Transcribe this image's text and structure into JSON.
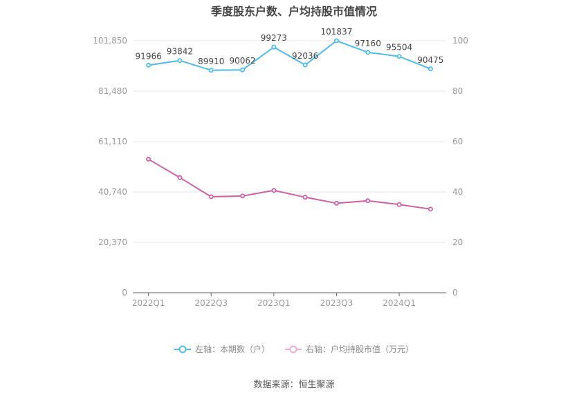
{
  "title": "季度股东户数、户均持股市值情况",
  "legend": {
    "left_label": "左轴：本期数（户）",
    "right_label": "右轴：户均持股市值（万元）"
  },
  "source": "数据来源：恒生聚源",
  "colors": {
    "holders": "#4dbbeb",
    "avg_value": "#d05fa4",
    "legend_right": "#f0a8cf",
    "grid": "#e6e6ef",
    "axis_text": "#999999",
    "label_text": "#444444"
  },
  "chart_data": {
    "type": "line",
    "title": "季度股东户数、户均持股市值情况",
    "categories": [
      "2022Q1",
      "2022Q2",
      "2022Q3",
      "2022Q4",
      "2023Q1",
      "2023Q2",
      "2023Q3",
      "2023Q4",
      "2024Q1",
      "2024Q2"
    ],
    "x_tick_labels": [
      "2022Q1",
      "2022Q3",
      "2023Q1",
      "2023Q3",
      "2024Q1"
    ],
    "series": [
      {
        "name": "左轴：本期数（户）",
        "axis": "left",
        "values": [
          91966,
          93842,
          89910,
          90062,
          99273,
          92036,
          101837,
          97160,
          95504,
          90475
        ],
        "data_labels": true
      },
      {
        "name": "右轴：户均持股市值（万元）",
        "axis": "right",
        "values": [
          53.0,
          45.7,
          38.1,
          38.4,
          40.6,
          37.9,
          35.5,
          36.5,
          35.0,
          33.2
        ],
        "data_labels": false
      }
    ],
    "left_axis": {
      "ticks": [
        "0",
        "20,370",
        "40,740",
        "61,110",
        "81,480",
        "101,850"
      ],
      "ylim": [
        0,
        101850
      ]
    },
    "right_axis": {
      "ticks": [
        "0",
        "20",
        "40",
        "60",
        "80",
        "100"
      ],
      "ylim": [
        0,
        100
      ]
    },
    "grid": true,
    "legend_position": "bottom"
  }
}
